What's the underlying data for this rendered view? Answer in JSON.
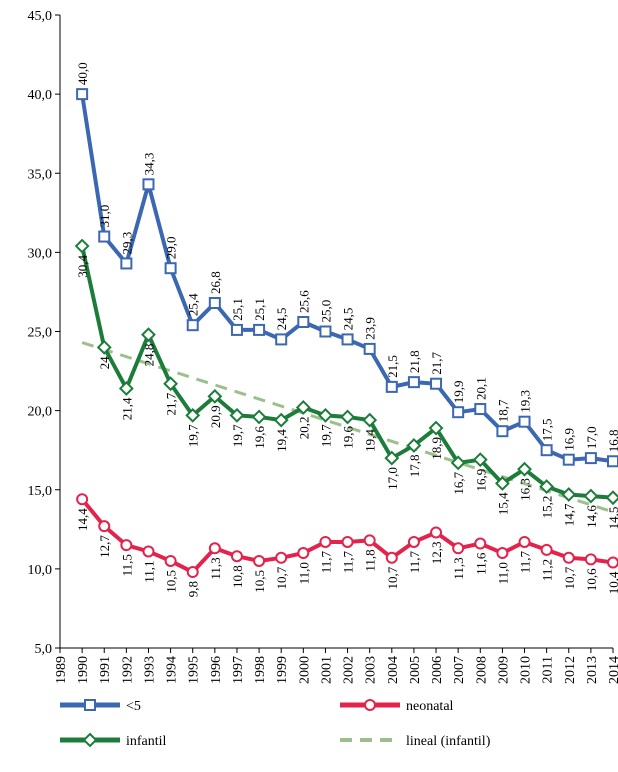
{
  "chart_data": {
    "type": "line",
    "x": [
      1990,
      1991,
      1992,
      1993,
      1994,
      1995,
      1996,
      1997,
      1998,
      1999,
      2000,
      2001,
      2002,
      2003,
      2004,
      2005,
      2006,
      2007,
      2008,
      2009,
      2010,
      2011,
      2012,
      2013,
      2014
    ],
    "xlim": [
      1989,
      2014
    ],
    "xticks": [
      1989,
      1990,
      1991,
      1992,
      1993,
      1994,
      1995,
      1996,
      1997,
      1998,
      1999,
      2000,
      2001,
      2002,
      2003,
      2004,
      2005,
      2006,
      2007,
      2008,
      2009,
      2010,
      2011,
      2012,
      2013,
      2014
    ],
    "ylim": [
      5,
      45
    ],
    "yticks": [
      {
        "value": 5,
        "label": "5,0"
      },
      {
        "value": 10,
        "label": "10,0"
      },
      {
        "value": 15,
        "label": "15,0"
      },
      {
        "value": 20,
        "label": "20,0"
      },
      {
        "value": 25,
        "label": "25,0"
      },
      {
        "value": 30,
        "label": "30,0"
      },
      {
        "value": 35,
        "label": "35,0"
      },
      {
        "value": 40,
        "label": "40,0"
      },
      {
        "value": 45,
        "label": "45,0"
      }
    ],
    "series": [
      {
        "name": "<5",
        "color": "#3b68b1",
        "marker": "square",
        "values": [
          40.0,
          31.0,
          29.3,
          34.3,
          29.0,
          25.4,
          26.8,
          25.1,
          25.1,
          24.5,
          25.6,
          25.0,
          24.5,
          23.9,
          21.5,
          21.8,
          21.7,
          19.9,
          20.1,
          18.7,
          19.3,
          17.5,
          16.9,
          17.0,
          16.8
        ],
        "value_labels": [
          "40,0",
          "31,0",
          "29,3",
          "34,3",
          "29,0",
          "25,4",
          "26,8",
          "25,1",
          "25,1",
          "24,5",
          "25,6",
          "25,0",
          "24,5",
          "23,9",
          "21,5",
          "21,8",
          "21,7",
          "19,9",
          "20,1",
          "18,7",
          "19,3",
          "17,5",
          "16,9",
          "17,0",
          "16,8"
        ]
      },
      {
        "name": "neonatal",
        "color": "#e3234c",
        "marker": "circle",
        "values": [
          14.4,
          12.7,
          11.5,
          11.1,
          10.5,
          9.8,
          11.3,
          10.8,
          10.5,
          10.7,
          11.0,
          11.7,
          11.7,
          11.8,
          10.7,
          11.7,
          12.3,
          11.3,
          11.6,
          11.0,
          11.7,
          11.2,
          10.7,
          10.6,
          10.4
        ],
        "value_labels": [
          "14,4",
          "12,7",
          "11,5",
          "11,1",
          "10,5",
          "9,8",
          "11,3",
          "10,8",
          "10,5",
          "10,7",
          "11,0",
          "11,7",
          "11,7",
          "11,8",
          "10,7",
          "11,7",
          "12,3",
          "11,3",
          "11,6",
          "11,0",
          "11,7",
          "11,2",
          "10,7",
          "10,6",
          "10,4"
        ]
      },
      {
        "name": "infantil",
        "color": "#1c7d3a",
        "marker": "diamond",
        "values": [
          30.4,
          24,
          21.4,
          24.8,
          21.7,
          19.7,
          20.9,
          19.7,
          19.6,
          19.4,
          20.2,
          19.7,
          19.6,
          19.4,
          17.0,
          17.8,
          18.9,
          16.7,
          16.9,
          15.4,
          16.3,
          15.2,
          14.7,
          14.6,
          14.5
        ],
        "value_labels": [
          "30,4",
          "24",
          "21,4",
          "24,8",
          "21,7",
          "19,7",
          "20,9",
          "19,7",
          "19,6",
          "19,4",
          "20,2",
          "19,7",
          "19,6",
          "19,4",
          "17,0",
          "17,8",
          "18,9",
          "16,7",
          "16,9",
          "15,4",
          "16,3",
          "15,2",
          "14,7",
          "14,6",
          "14,5"
        ]
      },
      {
        "name": "lineal (infantil)",
        "color": "#9cbf8c",
        "marker": "dash",
        "x": [
          1990,
          2014
        ],
        "values": [
          24.3,
          13.6
        ]
      }
    ]
  }
}
